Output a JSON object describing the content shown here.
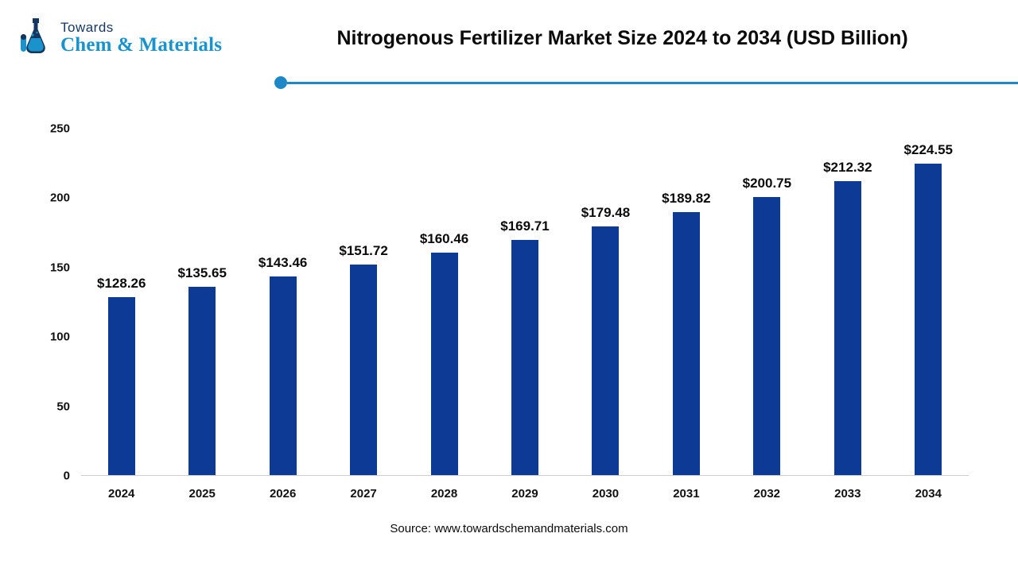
{
  "header": {
    "logo": {
      "line1": "Towards",
      "line2": "Chem & Materials"
    },
    "title": "Nitrogenous Fertilizer Market Size 2024 to 2034 (USD Billion)"
  },
  "footer": {
    "source": "Source: www.towardschemandmaterials.com"
  },
  "colors": {
    "bar": "#0d3a94",
    "accent_line": "#1e88c7",
    "logo_dark": "#15365f",
    "logo_cyan": "#1a93cc"
  },
  "chart_data": {
    "type": "bar",
    "title": "Nitrogenous Fertilizer Market Size 2024 to 2034 (USD Billion)",
    "categories": [
      "2024",
      "2025",
      "2026",
      "2027",
      "2028",
      "2029",
      "2030",
      "2031",
      "2032",
      "2033",
      "2034"
    ],
    "values": [
      128.26,
      135.65,
      143.46,
      151.72,
      160.46,
      169.71,
      179.48,
      189.82,
      200.75,
      212.32,
      224.55
    ],
    "data_labels": [
      "$128.26",
      "$135.65",
      "$143.46",
      "$151.72",
      "$160.46",
      "$169.71",
      "$179.48",
      "$189.82",
      "$200.75",
      "$212.32",
      "$224.55"
    ],
    "xlabel": "",
    "ylabel": "",
    "ylim": [
      0,
      250
    ],
    "yticks": [
      0,
      50,
      100,
      150,
      200,
      250
    ],
    "grid": false,
    "legend": false
  }
}
